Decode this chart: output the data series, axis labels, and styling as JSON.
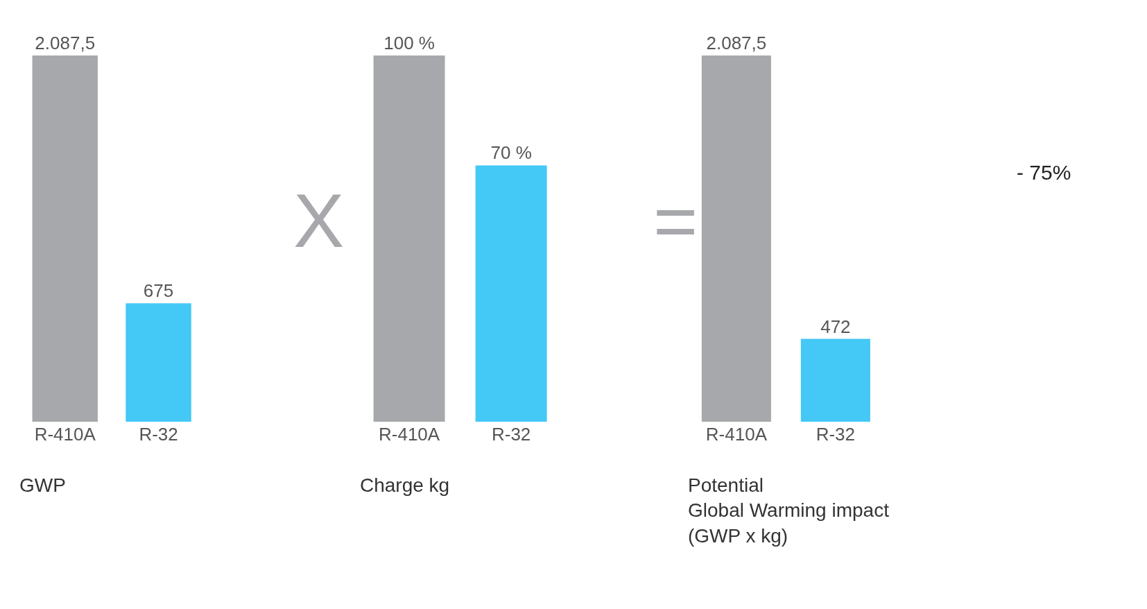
{
  "chart_data": [
    {
      "type": "bar",
      "categories": [
        "R-410A",
        "R-32"
      ],
      "values": [
        2087.5,
        675
      ],
      "colors": [
        "#a7a8ab",
        "#44c8f5"
      ],
      "value_labels": [
        "2.087,5",
        "675"
      ],
      "xlabel": "GWP",
      "tick_labels": "x",
      "annotations": [
        "X"
      ]
    },
    {
      "type": "bar",
      "categories": [
        "R-410A",
        "R-32"
      ],
      "values": [
        100,
        70
      ],
      "colors": [
        "#a7a8ab",
        "#44c8f5"
      ],
      "value_labels": [
        "100 %",
        "70 %"
      ],
      "xlabel": "Charge kg",
      "tick_labels": "x",
      "annotations": [
        "="
      ]
    },
    {
      "type": "bar",
      "categories": [
        "R-410A",
        "R-32"
      ],
      "values": [
        2087.5,
        472
      ],
      "colors": [
        "#a7a8ab",
        "#44c8f5"
      ],
      "value_labels": [
        "2.087,5",
        "472"
      ],
      "xlabel": "Potential\nGlobal Warming impact\n(GWP x kg)",
      "tick_labels": "x",
      "annotations": [
        "- 75%"
      ]
    }
  ]
}
